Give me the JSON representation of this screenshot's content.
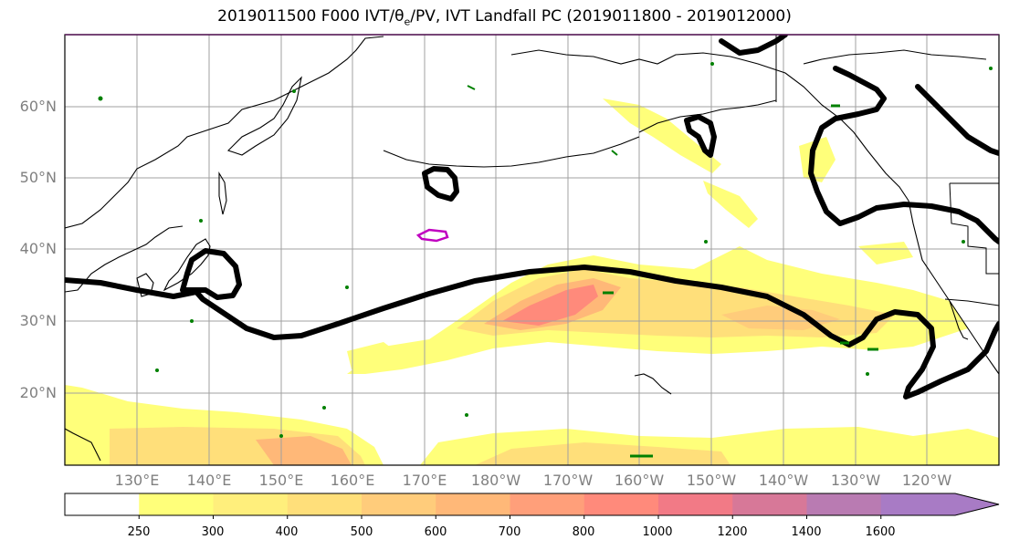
{
  "title": "2019011500 F000 IVT/θ",
  "title_sub": "e",
  "title_rest": "/PV, IVT Landfall PC (2019011800 - 2019012000)",
  "lat_labels": [
    "60°N",
    "50°N",
    "40°N",
    "30°N",
    "20°N"
  ],
  "lon_labels": [
    "130°E",
    "140°E",
    "150°E",
    "160°E",
    "170°E",
    "180°W",
    "170°W",
    "160°W",
    "150°W",
    "140°W",
    "130°W",
    "120°W"
  ],
  "colorbar": {
    "levels": [
      "250",
      "300",
      "400",
      "500",
      "600",
      "700",
      "800",
      "1000",
      "1200",
      "1400",
      "1600"
    ],
    "colors": [
      "#ffff7a",
      "#ffef7c",
      "#ffdf7a",
      "#ffcc7b",
      "#ffb878",
      "#ff9f7a",
      "#ff8a7b",
      "#f27a86",
      "#d77898",
      "#b97bb2",
      "#a87bc5"
    ]
  },
  "colors": {
    "ivt_contour": "#000000",
    "pv_green": "#008000",
    "pv_magenta": "#c000c0",
    "coast": "#000000",
    "grid": "#a0a0a0"
  }
}
